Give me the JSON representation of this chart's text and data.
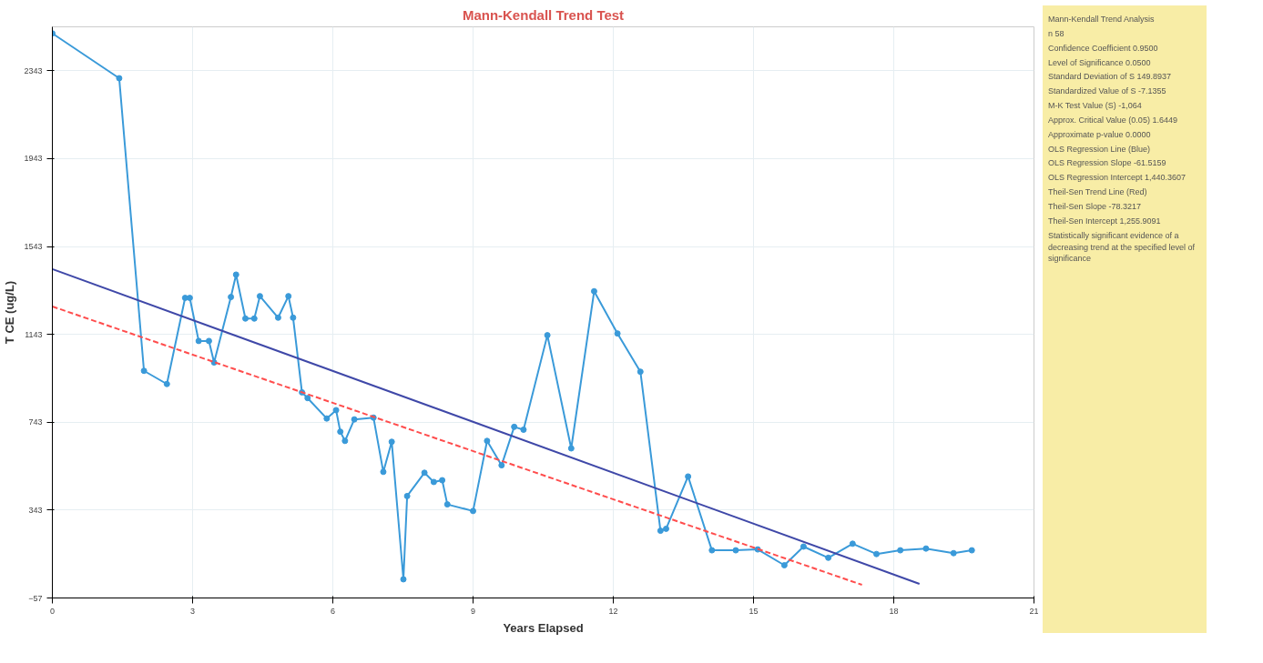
{
  "chart_data": {
    "type": "line",
    "title": "Mann-Kendall Trend Test",
    "xlabel": "Years Elapsed",
    "ylabel": "T CE (ug/L)",
    "xlim": [
      0,
      21
    ],
    "ylim": [
      -57,
      2543
    ],
    "xticks": [
      0,
      3,
      6,
      9,
      12,
      15,
      18,
      21
    ],
    "yticks": [
      -57,
      343,
      743,
      1143,
      1543,
      1943,
      2343
    ],
    "grid": true,
    "marker": "circle",
    "line_style": "solid",
    "series": [
      {
        "color": "#3a9ad9",
        "x": [
          0,
          1.43,
          1.96,
          2.45,
          2.84,
          2.94,
          3.13,
          3.35,
          3.46,
          3.82,
          3.93,
          4.13,
          4.32,
          4.44,
          4.83,
          5.05,
          5.15,
          5.34,
          5.46,
          5.87,
          6.07,
          6.16,
          6.26,
          6.46,
          6.87,
          7.08,
          7.26,
          7.51,
          7.59,
          7.96,
          8.16,
          8.34,
          8.45,
          9.0,
          9.3,
          9.61,
          9.88,
          10.08,
          10.59,
          11.1,
          11.59,
          12.09,
          12.58,
          13.01,
          13.13,
          13.6,
          14.11,
          14.62,
          15.09,
          15.66,
          16.07,
          16.6,
          17.12,
          17.63,
          18.14,
          18.69,
          19.28,
          19.67
        ],
        "values": [
          2513,
          2309,
          977,
          917,
          1309,
          1309,
          1113,
          1113,
          1015,
          1313,
          1415,
          1215,
          1215,
          1317,
          1219,
          1317,
          1219,
          879,
          853,
          760,
          798,
          700,
          658,
          756,
          764,
          517,
          654,
          28,
          407,
          513,
          471,
          479,
          369,
          339,
          658,
          547,
          722,
          709,
          1139,
          624,
          1339,
          1147,
          973,
          249,
          258,
          496,
          160,
          160,
          164,
          92,
          177,
          126,
          190,
          143,
          160,
          168,
          147,
          160
        ]
      },
      {
        "type": "line",
        "color": "#3f48a8",
        "marker": "none",
        "x": [
          0,
          18.55
        ],
        "values": [
          1440,
          7
        ]
      },
      {
        "type": "line",
        "color": "#ff4d4d",
        "marker": "none",
        "line_style": "dashed",
        "x": [
          0,
          17.32
        ],
        "values": [
          1270,
          3
        ]
      }
    ],
    "annotations": [
      "Mann-Kendall Trend Analysis",
      "n 58",
      "Confidence Coefficient 0.9500",
      "Level of Significance 0.0500",
      "Standard Deviation of S 149.8937",
      "Standardized Value of S -7.1355",
      "M-K Test Value (S) -1,064",
      "Approx. Critical Value (0.05) 1.6449",
      "Approximate p-value 0.0000",
      "OLS Regression Line (Blue)",
      "OLS Regression Slope -61.5159",
      "OLS Regression Intercept 1,440.3607",
      "Theil-Sen Trend Line (Red)",
      "Theil-Sen Slope -78.3217",
      "Theil-Sen Intercept 1,255.9091",
      "Statistically significant evidence of a decreasing trend at the specified level of significance"
    ]
  }
}
